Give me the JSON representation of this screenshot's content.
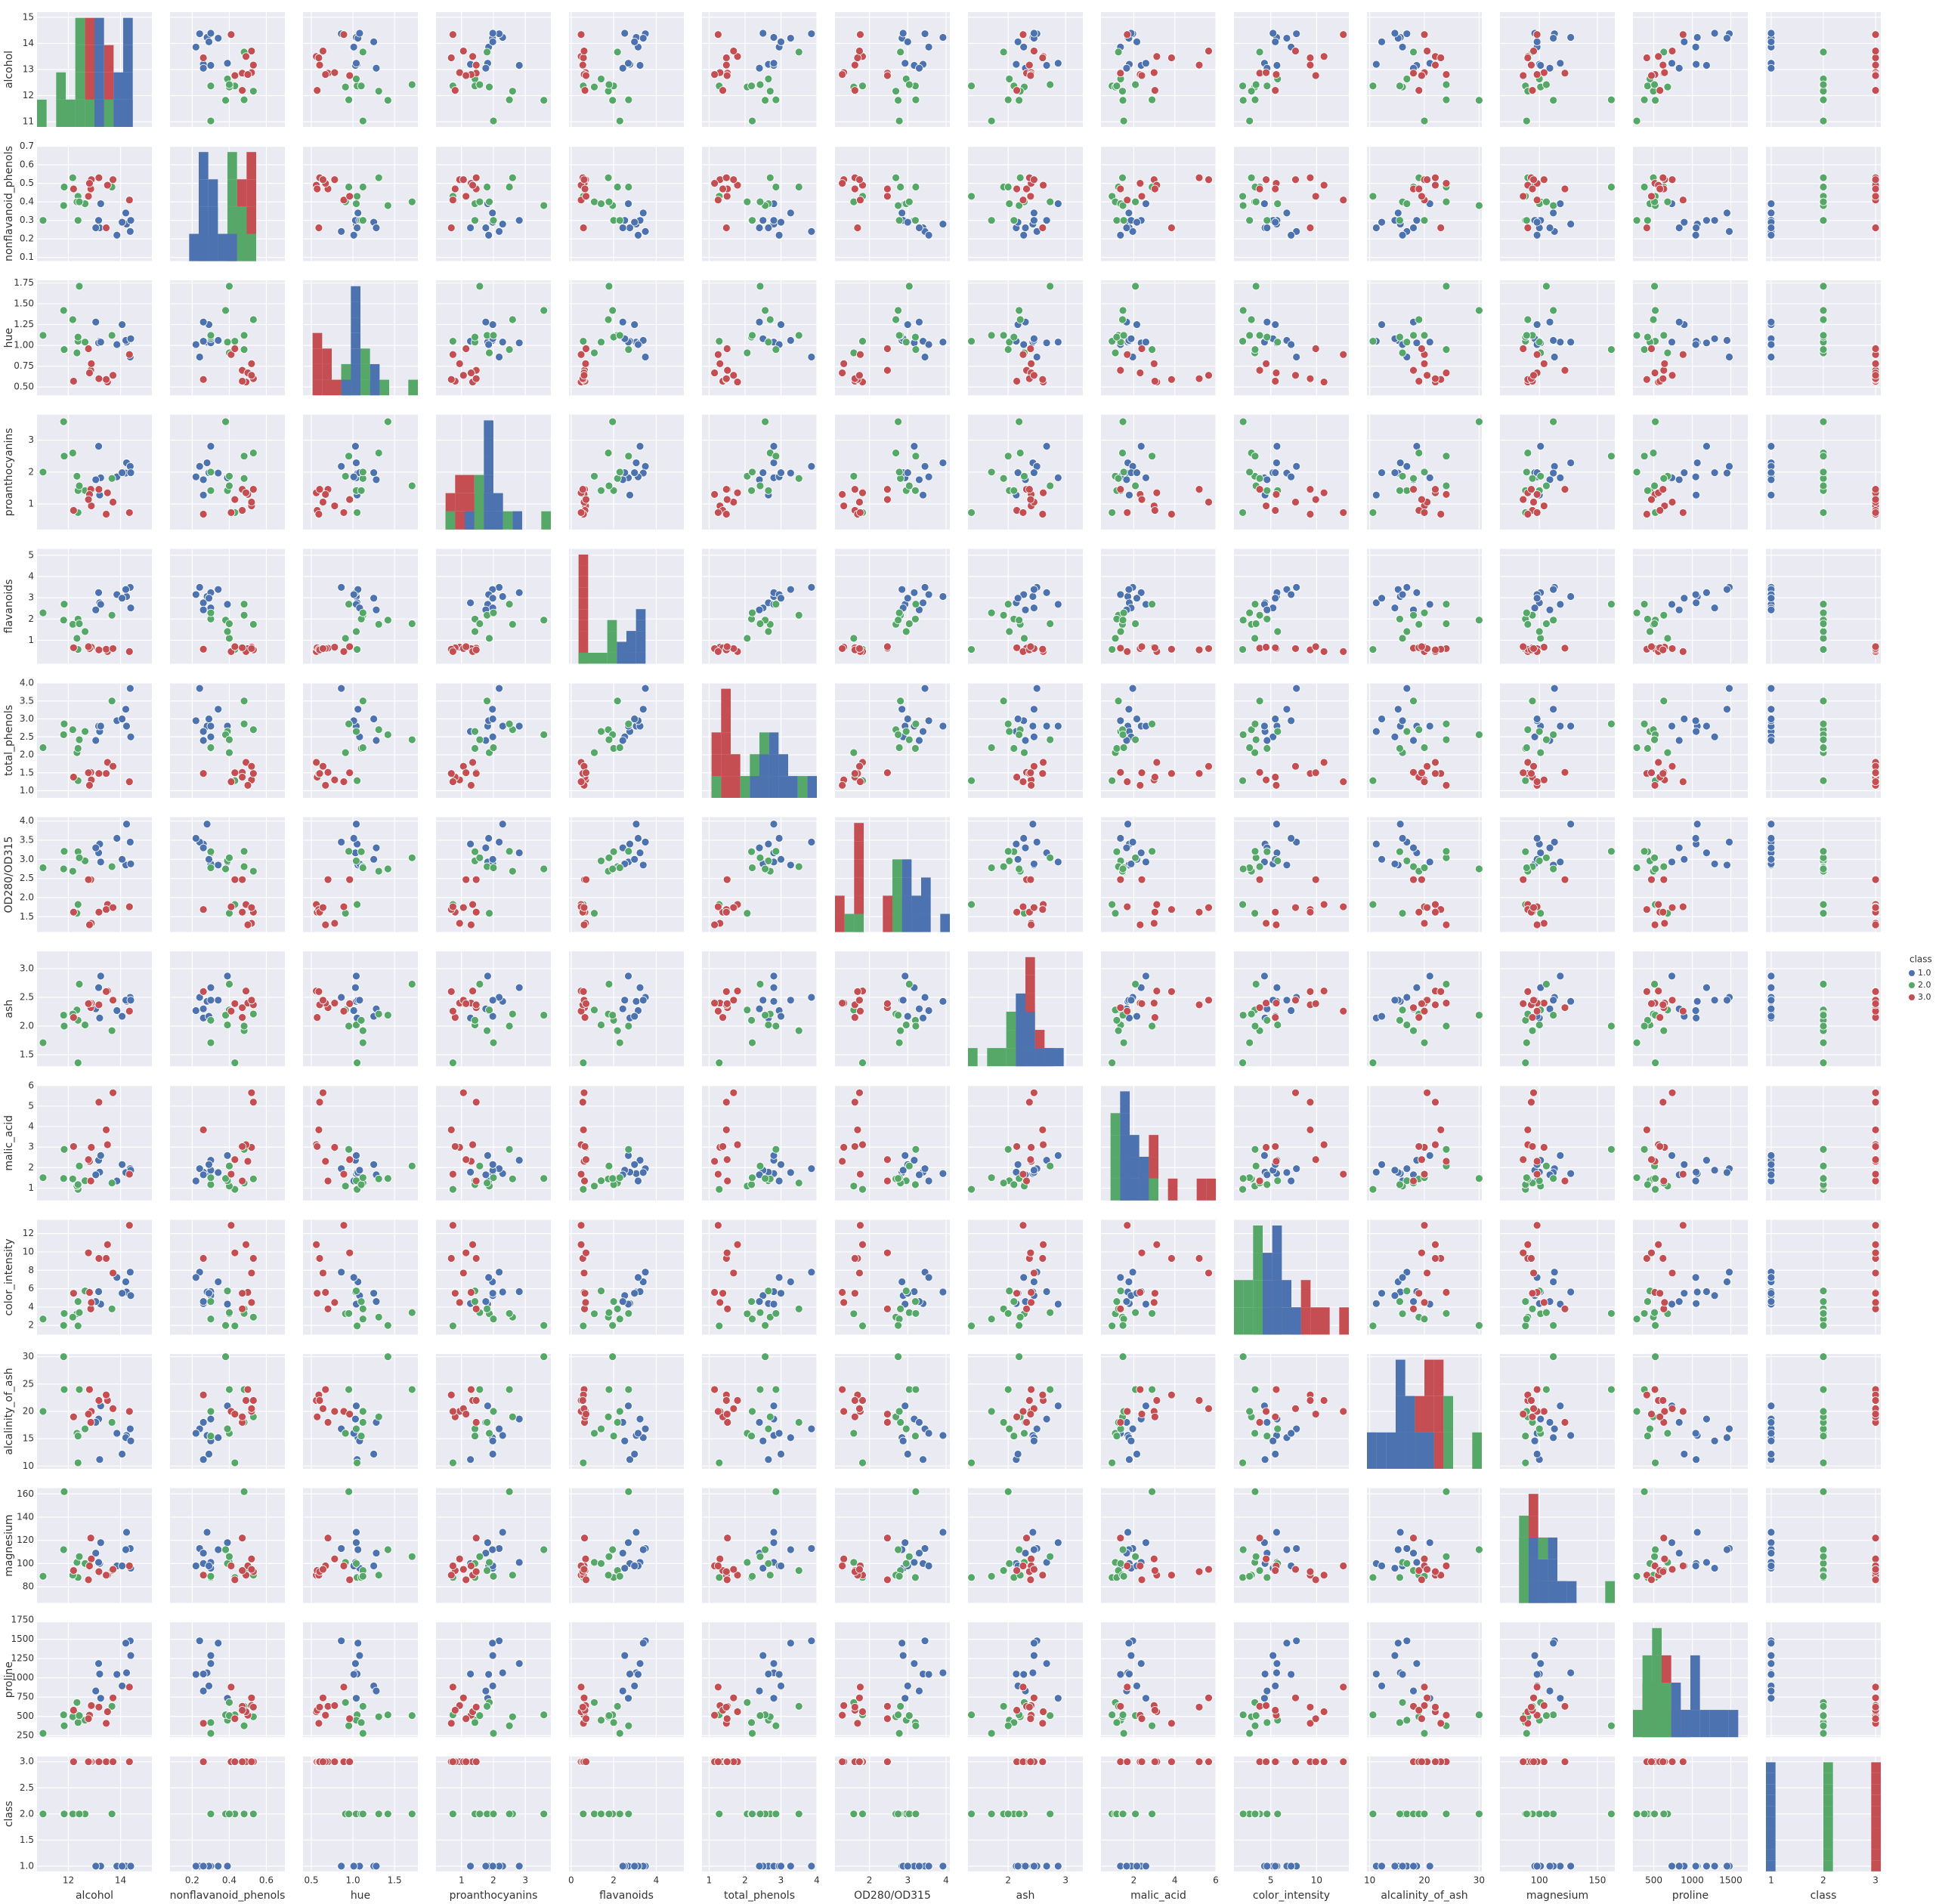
{
  "chart_data": {
    "type": "pairplot",
    "legend_title": "class",
    "variables": [
      {
        "name": "alcohol",
        "lim": [
          10.8,
          15.2
        ],
        "yticks": [
          11,
          12,
          13,
          14,
          15
        ],
        "xticks": [
          12,
          14
        ]
      },
      {
        "name": "nonflavanoid_phenols",
        "lim": [
          0.08,
          0.7
        ],
        "yticks": [
          0.1,
          0.2,
          0.3,
          0.4,
          0.5,
          0.6,
          0.7
        ],
        "xticks": [
          0.2,
          0.4,
          0.6
        ]
      },
      {
        "name": "hue",
        "lim": [
          0.4,
          1.78
        ],
        "yticks": [
          {
            "value": 0.5,
            "label": "0.50"
          },
          {
            "value": 0.75,
            "label": "0.75"
          },
          {
            "value": 1,
            "label": "1.00"
          },
          {
            "value": 1.25,
            "label": "1.25"
          },
          {
            "value": 1.5,
            "label": "1.50"
          },
          {
            "value": 1.75,
            "label": "1.75"
          }
        ],
        "xticks": [
          0.5,
          {
            "value": 1,
            "label": "1.0"
          },
          1.5
        ]
      },
      {
        "name": "proanthocyanins",
        "lim": [
          0.2,
          3.8
        ],
        "yticks": [
          1,
          2,
          3
        ],
        "xticks": [
          1,
          2,
          3
        ]
      },
      {
        "name": "flavanoids",
        "lim": [
          -0.1,
          5.3
        ],
        "yticks": [
          1,
          2,
          3,
          4,
          5
        ],
        "xticks": [
          0,
          2,
          4
        ]
      },
      {
        "name": "total_phenols",
        "lim": [
          0.8,
          4.0
        ],
        "yticks": [
          {
            "value": 1,
            "label": "1.0"
          },
          1.5,
          {
            "value": 2,
            "label": "2.0"
          },
          2.5,
          {
            "value": 3,
            "label": "3.0"
          },
          3.5,
          {
            "value": 4,
            "label": "4.0"
          }
        ],
        "xticks": [
          1,
          2,
          3,
          4
        ]
      },
      {
        "name": "OD280/OD315",
        "lim": [
          1.1,
          4.1
        ],
        "yticks": [
          1.5,
          {
            "value": 2,
            "label": "2.0"
          },
          2.5,
          {
            "value": 3,
            "label": "3.0"
          },
          3.5,
          {
            "value": 4,
            "label": "4.0"
          }
        ],
        "xticks": [
          2,
          3,
          4
        ]
      },
      {
        "name": "ash",
        "lim": [
          1.3,
          3.3
        ],
        "yticks": [
          1.5,
          {
            "value": 2,
            "label": "2.0"
          },
          2.5,
          {
            "value": 3,
            "label": "3.0"
          }
        ],
        "xticks": [
          2,
          3
        ]
      },
      {
        "name": "malic_acid",
        "lim": [
          0.4,
          6.0
        ],
        "yticks": [
          1,
          2,
          3,
          4,
          5,
          6
        ],
        "xticks": [
          2,
          4,
          6
        ]
      },
      {
        "name": "color_intensity",
        "lim": [
          1,
          13.5
        ],
        "yticks": [
          2,
          4,
          6,
          8,
          10,
          12
        ],
        "xticks": [
          5,
          10
        ]
      },
      {
        "name": "alcalinity_of_ash",
        "lim": [
          9.5,
          30.5
        ],
        "yticks": [
          10,
          15,
          20,
          25,
          30
        ],
        "xticks": [
          10,
          20,
          30
        ]
      },
      {
        "name": "magnesium",
        "lim": [
          66,
          165
        ],
        "yticks": [
          80,
          100,
          120,
          140,
          160
        ],
        "xticks": [
          100,
          150
        ]
      },
      {
        "name": "proline",
        "lim": [
          230,
          1720
        ],
        "yticks": [
          250,
          500,
          750,
          1000,
          1250,
          1500,
          1750
        ],
        "xticks": [
          500,
          1000,
          1500
        ]
      },
      {
        "name": "class",
        "lim": [
          0.9,
          3.1
        ],
        "yticks": [
          {
            "value": 1,
            "label": "1.0"
          },
          1.5,
          {
            "value": 2,
            "label": "2.0"
          },
          2.5,
          {
            "value": 3,
            "label": "3.0"
          }
        ],
        "xticks": [
          1,
          2,
          3
        ]
      }
    ],
    "series": [
      {
        "name": "1.0",
        "color": "#4c72b0",
        "samples": [
          [
            14.23,
            0.28,
            1.04,
            2.29,
            3.06,
            2.8,
            3.92,
            2.43,
            1.71,
            5.64,
            15.6,
            127,
            1065,
            1
          ],
          [
            13.2,
            0.26,
            1.05,
            1.28,
            2.76,
            2.65,
            3.4,
            2.14,
            1.78,
            4.38,
            11.2,
            100,
            1050,
            1
          ],
          [
            13.16,
            0.3,
            1.03,
            2.81,
            3.24,
            2.8,
            3.17,
            2.67,
            2.36,
            5.68,
            18.6,
            101,
            1185,
            1
          ],
          [
            14.37,
            0.24,
            0.86,
            2.18,
            3.49,
            3.85,
            3.45,
            2.5,
            1.95,
            7.8,
            16.8,
            113,
            1480,
            1
          ],
          [
            13.24,
            0.39,
            1.04,
            1.82,
            2.69,
            2.8,
            2.93,
            2.87,
            2.59,
            4.32,
            21,
            118,
            735,
            1
          ],
          [
            14.2,
            0.34,
            1.06,
            1.97,
            3.39,
            3.27,
            2.85,
            2.45,
            1.76,
            6.75,
            15.2,
            112,
            1450,
            1
          ],
          [
            14.39,
            0.3,
            1.08,
            1.98,
            2.52,
            2.5,
            2.88,
            2.45,
            1.87,
            5.25,
            14.6,
            96,
            1290,
            1
          ],
          [
            13.86,
            0.22,
            1.01,
            1.85,
            3.15,
            2.95,
            3.55,
            2.27,
            1.35,
            7.22,
            16,
            98,
            1045,
            1
          ],
          [
            14.06,
            0.29,
            1.25,
            1.98,
            2.98,
            3.0,
            3.0,
            2.17,
            2.15,
            5.5,
            12.2,
            98,
            895,
            1
          ],
          [
            13.05,
            0.26,
            1.28,
            1.76,
            2.43,
            2.4,
            3.3,
            2.3,
            1.65,
            4.6,
            18,
            109,
            830,
            1
          ]
        ]
      },
      {
        "name": "2.0",
        "color": "#55a868",
        "samples": [
          [
            12.37,
            0.43,
            1.05,
            0.73,
            0.57,
            1.28,
            1.82,
            1.36,
            0.94,
            1.95,
            10.6,
            88,
            520,
            2
          ],
          [
            12.33,
            0.4,
            0.91,
            1.87,
            1.09,
            2.06,
            1.59,
            2.28,
            1.1,
            3.27,
            16,
            101,
            680,
            2
          ],
          [
            12.64,
            0.39,
            1.04,
            1.42,
            1.41,
            2.65,
            2.96,
            2.02,
            1.36,
            5.75,
            16.8,
            100,
            450,
            2
          ],
          [
            13.67,
            0.48,
            1.12,
            1.8,
            2.18,
            3.5,
            2.81,
            1.92,
            1.25,
            3.8,
            18,
            94,
            630,
            2
          ],
          [
            12.37,
            0.3,
            1.1,
            1.42,
            2.0,
            2.18,
            3.2,
            2.1,
            1.17,
            4.6,
            15.5,
            88,
            420,
            2
          ],
          [
            12.17,
            0.53,
            1.31,
            2.6,
            1.75,
            2.7,
            2.69,
            2.21,
            1.45,
            2.9,
            19,
            90,
            495,
            2
          ],
          [
            11.03,
            0.3,
            1.12,
            2.0,
            2.29,
            2.2,
            2.78,
            1.71,
            1.51,
            2.7,
            20,
            89,
            280,
            2
          ],
          [
            11.82,
            0.38,
            1.42,
            3.58,
            1.95,
            2.56,
            2.75,
            2.19,
            1.47,
            2.0,
            30,
            112,
            520,
            2
          ],
          [
            12.42,
            0.4,
            1.71,
            1.57,
            1.78,
            2.42,
            3.04,
            2.73,
            2.08,
            3.4,
            24,
            106,
            510,
            2
          ],
          [
            11.84,
            0.48,
            0.95,
            2.5,
            2.7,
            2.86,
            3.21,
            2.0,
            2.89,
            3.3,
            24,
            162,
            378,
            2
          ]
        ]
      },
      {
        "name": "3.0",
        "color": "#c44e52",
        "samples": [
          [
            12.86,
            0.47,
            0.7,
            1.46,
            0.63,
            1.51,
            2.47,
            2.32,
            1.35,
            3.8,
            18,
            122,
            630,
            3
          ],
          [
            12.88,
            0.52,
            0.78,
            0.94,
            0.68,
            1.3,
            1.33,
            2.4,
            2.99,
            4.5,
            20,
            104,
            640,
            3
          ],
          [
            12.81,
            0.5,
            0.67,
            1.3,
            0.61,
            1.15,
            1.29,
            2.4,
            2.31,
            5.6,
            24,
            98,
            515,
            3
          ],
          [
            13.5,
            0.49,
            0.56,
            1.35,
            0.47,
            1.79,
            1.82,
            2.61,
            3.12,
            10.8,
            22,
            90,
            560,
            3
          ],
          [
            12.2,
            0.47,
            0.57,
            0.8,
            0.65,
            1.38,
            1.62,
            2.15,
            3.03,
            5.5,
            19,
            94,
            580,
            3
          ],
          [
            13.45,
            0.26,
            0.59,
            0.68,
            0.58,
            1.48,
            1.69,
            2.6,
            3.84,
            9.3,
            23,
            90,
            410,
            3
          ],
          [
            14.34,
            0.41,
            0.89,
            0.73,
            0.47,
            1.25,
            1.76,
            2.26,
            1.68,
            12.9,
            20,
            98,
            880,
            3
          ],
          [
            13.17,
            0.53,
            0.6,
            1.46,
            0.55,
            1.48,
            1.62,
            2.37,
            5.19,
            9.3,
            22,
            93,
            620,
            3
          ],
          [
            13.71,
            0.52,
            0.64,
            1.06,
            0.61,
            1.68,
            1.74,
            2.45,
            5.65,
            7.7,
            20.5,
            95,
            740,
            3
          ],
          [
            12.77,
            0.43,
            0.96,
            1.14,
            0.7,
            1.5,
            2.47,
            2.39,
            2.39,
            9.9,
            19.5,
            86,
            470,
            3
          ]
        ]
      }
    ]
  }
}
